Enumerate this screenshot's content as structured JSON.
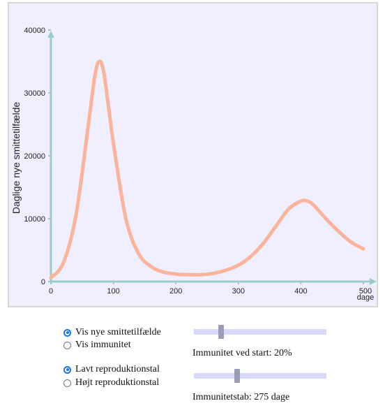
{
  "chart_data": {
    "type": "line",
    "ylabel": "Daglige nye smittetilfælde",
    "xlabel": "dage",
    "xlim": [
      0,
      500
    ],
    "ylim": [
      0,
      40000
    ],
    "x_ticks": [
      "0",
      "100",
      "200",
      "300",
      "400",
      "500"
    ],
    "y_ticks": [
      "0",
      "10000",
      "20000",
      "30000",
      "40000"
    ],
    "grid": false,
    "series": [
      {
        "color": "#fbb399",
        "x": [
          0,
          20,
          40,
          60,
          70,
          77,
          85,
          100,
          120,
          140,
          160,
          180,
          200,
          220,
          240,
          260,
          280,
          300,
          320,
          340,
          360,
          380,
          400,
          410,
          420,
          440,
          460,
          480,
          500
        ],
        "y": [
          600,
          3000,
          10500,
          25000,
          32500,
          35000,
          33000,
          22000,
          10000,
          4500,
          2400,
          1500,
          1200,
          1100,
          1100,
          1300,
          1800,
          2600,
          4000,
          6100,
          8800,
          11500,
          12800,
          12800,
          12200,
          10000,
          8000,
          6300,
          5200
        ]
      }
    ]
  },
  "controls": {
    "view_options": [
      "Vis nye smittetilfælde",
      "Vis immunitet"
    ],
    "view_selected": 0,
    "r_options": [
      "Lavt reproduktionstal",
      "Højt reproduktionstal"
    ],
    "r_selected": 0,
    "immunity_start_label": "Immunitet ved start: 20%",
    "immunity_start_value": 20,
    "immunity_loss_label": "Immunitetstab: 275 dage",
    "immunity_loss_value": 275
  },
  "colors": {
    "axis": "#9ccbc6",
    "curve": "#fbb399",
    "plot_bg": "#f0efff",
    "radio_accent": "#1a73e8"
  }
}
